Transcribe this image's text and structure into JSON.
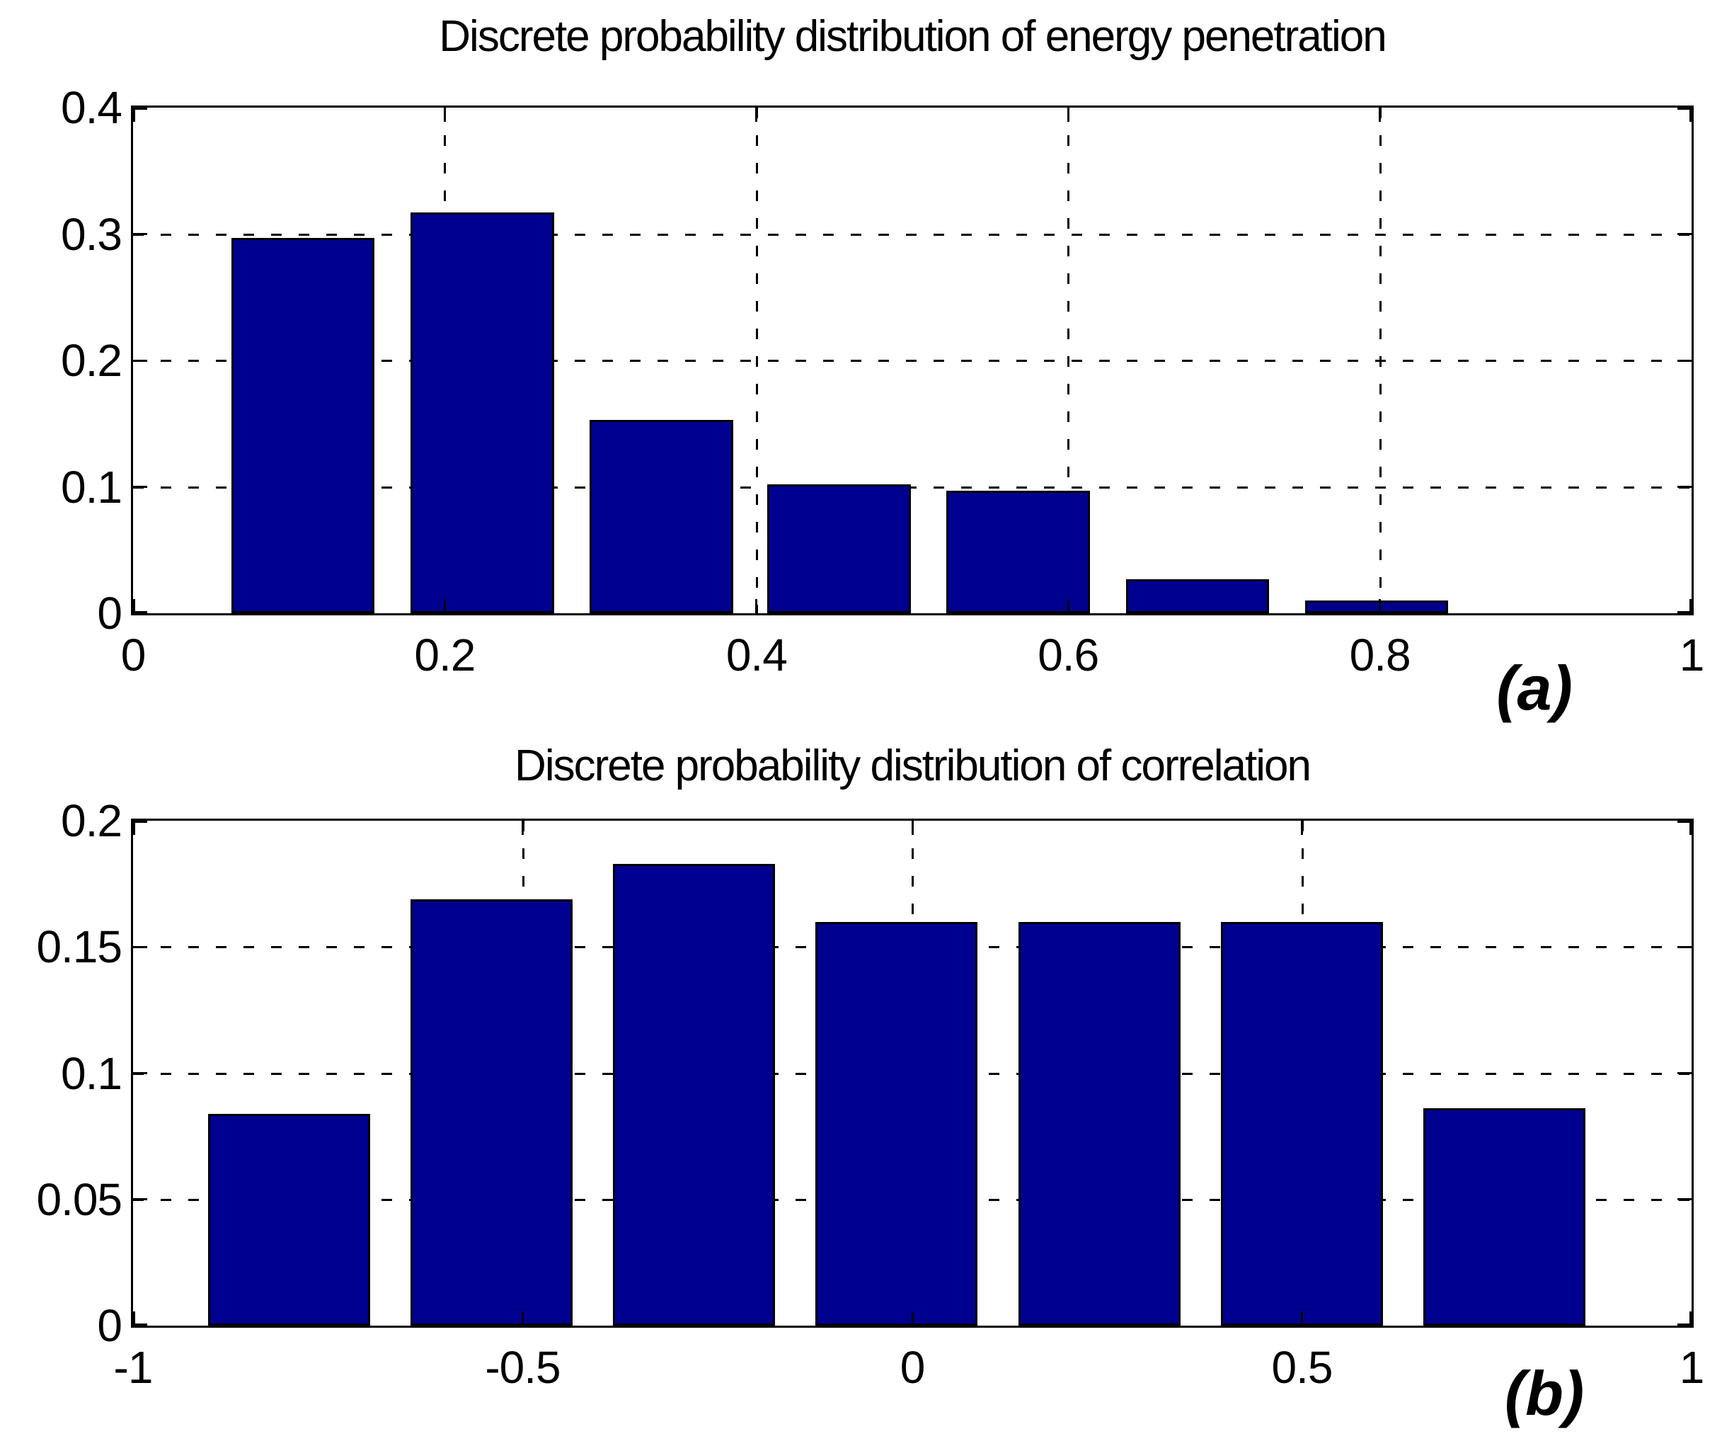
{
  "figure": {
    "background": "#ffffff",
    "grid_style": "dashed",
    "axis_color": "#000000"
  },
  "chart_data": [
    {
      "type": "bar",
      "title": "Discrete probability distribution of energy penetration",
      "panel_label": "(a)",
      "x": [
        0.109,
        0.224,
        0.339,
        0.453,
        0.568,
        0.683,
        0.798
      ],
      "values": [
        0.297,
        0.317,
        0.153,
        0.102,
        0.097,
        0.027,
        0.01
      ],
      "bar_width": 0.092,
      "xlim": [
        0,
        1
      ],
      "ylim": [
        0,
        0.4
      ],
      "x_ticks": [
        0,
        0.2,
        0.4,
        0.6,
        0.8,
        1
      ],
      "x_tick_labels": [
        "0",
        "0.2",
        "0.4",
        "0.6",
        "0.8",
        "1"
      ],
      "y_ticks": [
        0,
        0.1,
        0.2,
        0.3,
        0.4
      ],
      "y_tick_labels": [
        "0",
        "0.1",
        "0.2",
        "0.3",
        "0.4"
      ],
      "grid": "dashed",
      "legend": null,
      "bar_color": "#000090",
      "bar_edge_color": "#000000"
    },
    {
      "type": "bar",
      "title": "Discrete probability distribution of correlation",
      "panel_label": "(b)",
      "x": [
        -0.8,
        -0.54,
        -0.28,
        -0.02,
        0.24,
        0.5,
        0.76
      ],
      "values": [
        0.084,
        0.169,
        0.183,
        0.16,
        0.16,
        0.16,
        0.086
      ],
      "bar_width": 0.208,
      "xlim": [
        -1,
        1
      ],
      "ylim": [
        0,
        0.2
      ],
      "x_ticks": [
        -1,
        -0.5,
        0,
        0.5,
        1
      ],
      "x_tick_labels": [
        "-1",
        "-0.5",
        "0",
        "0.5",
        "1"
      ],
      "y_ticks": [
        0,
        0.05,
        0.1,
        0.15,
        0.2
      ],
      "y_tick_labels": [
        "0",
        "0.05",
        "0.1",
        "0.15",
        "0.2"
      ],
      "grid": "dashed",
      "legend": null,
      "bar_color": "#000090",
      "bar_edge_color": "#000000"
    }
  ]
}
